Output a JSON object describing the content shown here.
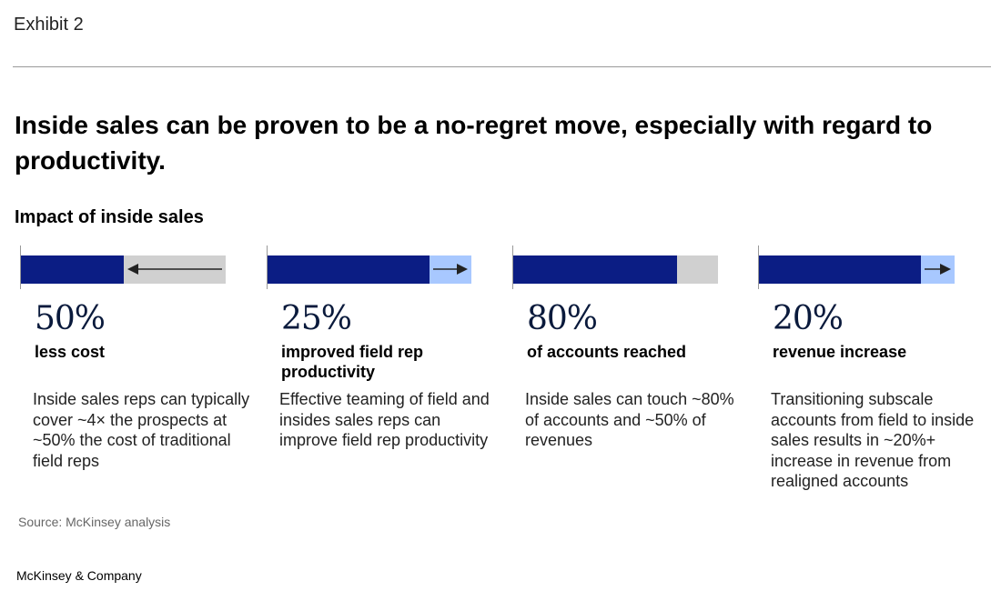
{
  "header": {
    "exhibit": "Exhibit 2",
    "title": "Inside sales can be proven to be a no-regret move, especially with regard to productivity.",
    "subtitle": "Impact of inside sales"
  },
  "colors": {
    "navy": "#0b1d84",
    "grey": "#d0d0d0",
    "light_blue": "#a8c8ff",
    "arrow": "#222222"
  },
  "chart_data": {
    "type": "bar",
    "categories": [
      "less cost",
      "improved field rep productivity",
      "of accounts reached",
      "revenue increase"
    ],
    "cards": [
      {
        "value_label": "50%",
        "value": 50,
        "caption": "less cost",
        "description": "Inside sales reps can typically cover ~4× the prospects at ~50% the cost of traditional field reps",
        "arrow": "left"
      },
      {
        "value_label": "25%",
        "value": 25,
        "caption": "improved field rep productivity",
        "description": "Effective teaming of field and insides sales reps can improve field rep productivity",
        "arrow": "right"
      },
      {
        "value_label": "80%",
        "value": 80,
        "caption": "of accounts reached",
        "description": "Inside sales can touch ~80% of accounts and ~50% of revenues",
        "arrow": "none"
      },
      {
        "value_label": "20%",
        "value": 20,
        "caption": "revenue increase",
        "description": "Transitioning subscale accounts from field to inside sales results in ~20%+ increase in revenue from realigned accounts",
        "arrow": "right"
      }
    ]
  },
  "footer": {
    "source": "Source: McKinsey analysis",
    "brand": "McKinsey & Company"
  }
}
